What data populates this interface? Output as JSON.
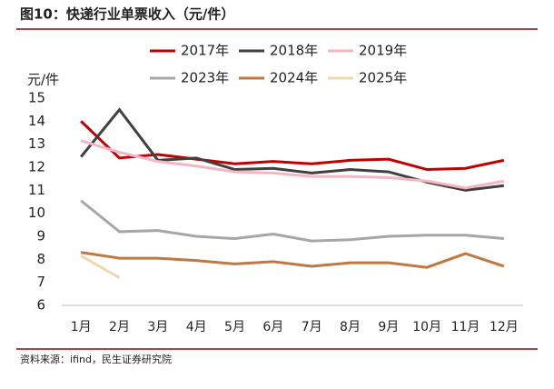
{
  "chart_data": {
    "type": "line",
    "title": "图10：快递行业单票收入（元/件）",
    "ylabel": "元/件",
    "source": "资料来源：ifind，民生证券研究院",
    "categories": [
      "1月",
      "2月",
      "3月",
      "4月",
      "5月",
      "6月",
      "7月",
      "8月",
      "9月",
      "10月",
      "11月",
      "12月"
    ],
    "series": [
      {
        "name": "2017年",
        "color": "#c00000",
        "values": [
          14.0,
          12.4,
          12.55,
          12.35,
          12.15,
          12.25,
          12.15,
          12.3,
          12.35,
          11.9,
          11.95,
          12.3
        ]
      },
      {
        "name": "2018年",
        "color": "#404040",
        "values": [
          12.45,
          14.5,
          12.3,
          12.4,
          11.9,
          11.95,
          11.75,
          11.9,
          11.8,
          11.35,
          11.0,
          11.2
        ]
      },
      {
        "name": "2019年",
        "color": "#f4b6c2",
        "values": [
          13.15,
          12.65,
          12.25,
          12.05,
          11.8,
          11.75,
          11.6,
          11.6,
          11.55,
          11.4,
          11.1,
          11.4
        ]
      },
      {
        "name": "2023年",
        "color": "#a6a6a6",
        "values": [
          10.55,
          9.2,
          9.25,
          9.0,
          8.9,
          9.1,
          8.8,
          8.85,
          9.0,
          9.05,
          9.05,
          8.9
        ]
      },
      {
        "name": "2024年",
        "color": "#c07840",
        "values": [
          8.3,
          8.05,
          8.05,
          7.95,
          7.8,
          7.9,
          7.7,
          7.85,
          7.85,
          7.65,
          8.25,
          7.7
        ]
      },
      {
        "name": "2025年",
        "color": "#ecd9b0",
        "values": [
          8.15,
          7.2,
          null,
          null,
          null,
          null,
          null,
          null,
          null,
          null,
          null,
          null
        ]
      }
    ],
    "ylim": [
      6,
      15
    ],
    "yticks": [
      6,
      7,
      8,
      9,
      10,
      11,
      12,
      13,
      14,
      15
    ]
  }
}
